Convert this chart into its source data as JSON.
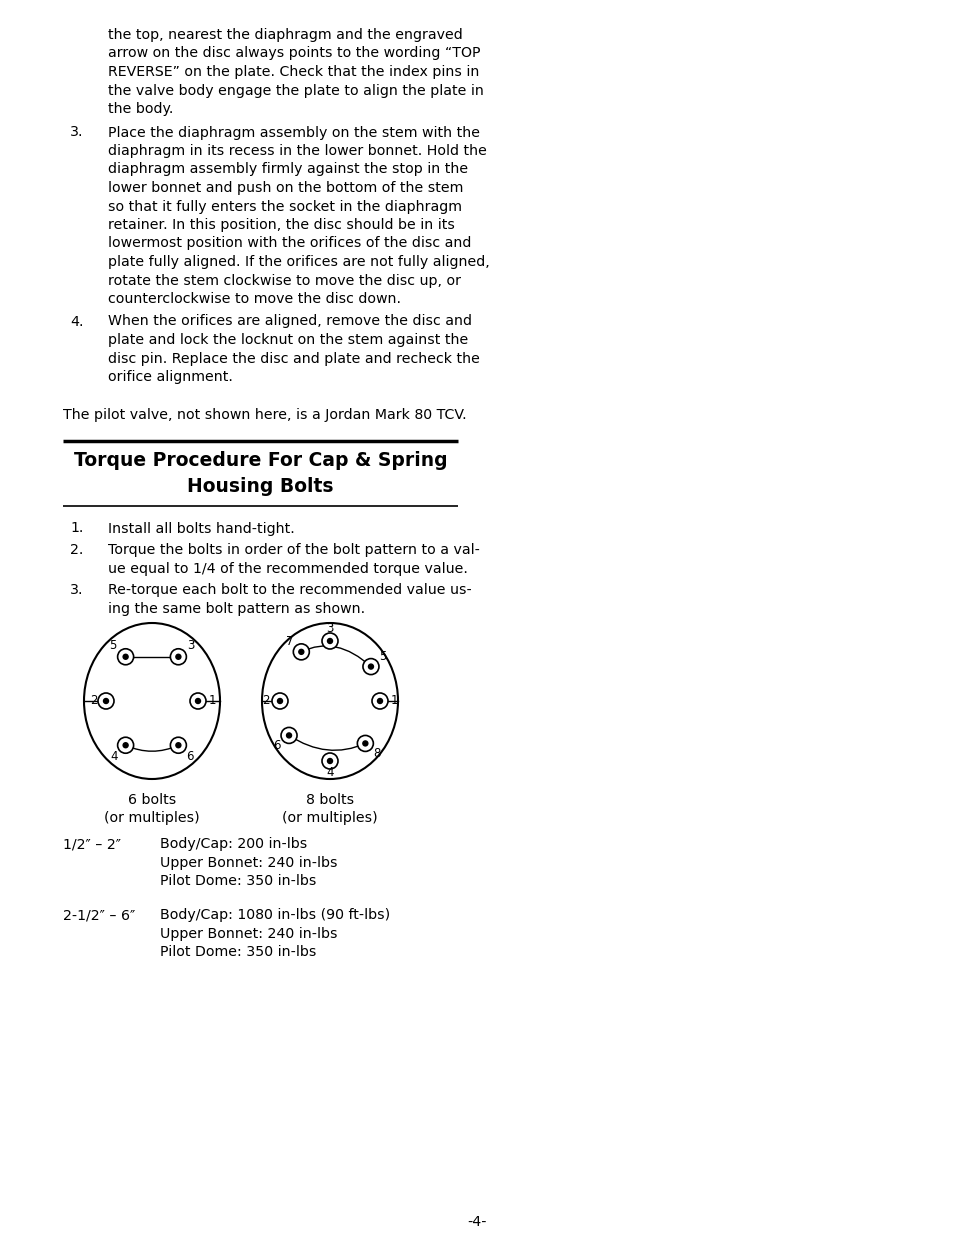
{
  "bg_color": "#ffffff",
  "page_number": "-4-",
  "intro_text_lines": [
    "the top, nearest the diaphragm and the engraved",
    "arrow on the disc always points to the wording “TOP",
    "REVERSE” on the plate. Check that the index pins in",
    "the valve body engage the plate to align the plate in",
    "the body."
  ],
  "item3_lines": [
    "Place the diaphragm assembly on the stem with the",
    "diaphragm in its recess in the lower bonnet. Hold the",
    "diaphragm assembly firmly against the stop in the",
    "lower bonnet and push on the bottom of the stem",
    "so that it fully enters the socket in the diaphragm",
    "retainer. In this position, the disc should be in its",
    "lowermost position with the orifices of the disc and",
    "plate fully aligned. If the orifices are not fully aligned,",
    "rotate the stem clockwise to move the disc up, or",
    "counterclockwise to move the disc down."
  ],
  "item4_lines": [
    "When the orifices are aligned, remove the disc and",
    "plate and lock the locknut on the stem against the",
    "disc pin. Replace the disc and plate and recheck the",
    "orifice alignment."
  ],
  "pilot_text": "The pilot valve, not shown here, is a Jordan Mark 80 TCV.",
  "section_title_line1": "Torque Procedure For Cap & Spring",
  "section_title_line2": "Housing Bolts",
  "size1_range": "1/2″ – 2″",
  "size1_specs": [
    "Body/Cap: 200 in-lbs",
    "Upper Bonnet: 240 in-lbs",
    "Pilot Dome: 350 in-lbs"
  ],
  "size2_range": "2-1/2″ – 6″",
  "size2_specs": [
    "Body/Cap: 1080 in-lbs (90 ft-lbs)",
    "Upper Bonnet: 240 in-lbs",
    "Pilot Dome: 350 in-lbs"
  ]
}
